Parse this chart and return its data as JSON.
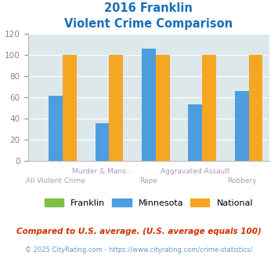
{
  "title_line1": "2016 Franklin",
  "title_line2": "Violent Crime Comparison",
  "categories": [
    "All Violent Crime",
    "Murder & Mans...",
    "Rape",
    "Aggravated Assault",
    "Robbery"
  ],
  "franklin_values": [
    0,
    0,
    0,
    0,
    0
  ],
  "minnesota_values": [
    61,
    35,
    106,
    53,
    66
  ],
  "national_values": [
    100,
    100,
    100,
    100,
    100
  ],
  "franklin_color": "#7bc043",
  "minnesota_color": "#4d9de0",
  "national_color": "#f5a623",
  "ylim": [
    0,
    120
  ],
  "yticks": [
    0,
    20,
    40,
    60,
    80,
    100,
    120
  ],
  "bg_color": "#dde8ea",
  "title_color": "#1a6fba",
  "footnote1": "Compared to U.S. average. (U.S. average equals 100)",
  "footnote2": "© 2025 CityRating.com - https://www.cityrating.com/crime-statistics/",
  "footnote1_color": "#cc3300",
  "footnote2_color": "#6699cc",
  "bar_width": 0.3,
  "label_rows": [
    "lower",
    "upper",
    "lower",
    "upper",
    "lower"
  ],
  "label_color": "#aa99bb"
}
